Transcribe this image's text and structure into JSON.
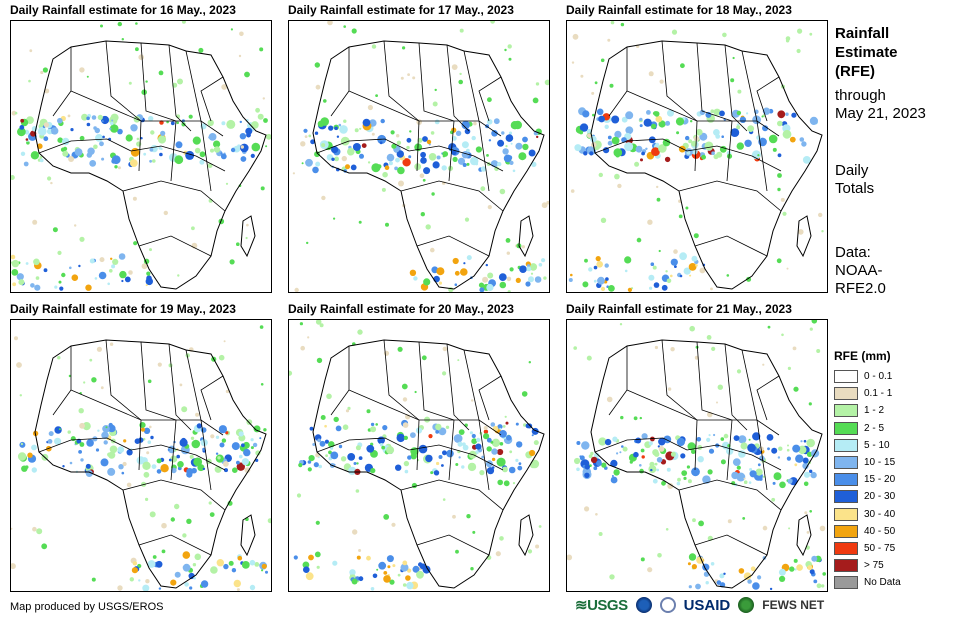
{
  "panels": [
    {
      "title": "Daily Rainfall estimate for 16 May., 2023"
    },
    {
      "title": "Daily Rainfall estimate for 17 May., 2023"
    },
    {
      "title": "Daily Rainfall estimate for 18 May., 2023"
    },
    {
      "title": "Daily Rainfall estimate for 19 May., 2023"
    },
    {
      "title": "Daily Rainfall estimate for 20 May., 2023"
    },
    {
      "title": "Daily Rainfall estimate for 21 May., 2023"
    }
  ],
  "side": {
    "title_line1": "Rainfall",
    "title_line2": "Estimate",
    "title_line3": "(RFE)",
    "through": "through",
    "date": "May 21, 2023",
    "totals1": "Daily",
    "totals2": "Totals",
    "data1": "Data:",
    "data2": "NOAA-",
    "data3": "RFE2.0"
  },
  "legend": {
    "title": "RFE (mm)",
    "items": [
      {
        "label": "0 - 0.1",
        "color": "#ffffff"
      },
      {
        "label": "0.1 - 1",
        "color": "#e9dcc0"
      },
      {
        "label": "1 - 2",
        "color": "#b4f2a6"
      },
      {
        "label": "2 - 5",
        "color": "#55dc55"
      },
      {
        "label": "5 - 10",
        "color": "#b5ecf5"
      },
      {
        "label": "10 - 15",
        "color": "#7fb5ef"
      },
      {
        "label": "15 - 20",
        "color": "#4a8ee9"
      },
      {
        "label": "20 - 30",
        "color": "#1f5fd8"
      },
      {
        "label": "30 - 40",
        "color": "#fbe38a"
      },
      {
        "label": "40 - 50",
        "color": "#f2a40f"
      },
      {
        "label": "50 - 75",
        "color": "#ef3a10"
      },
      {
        "label": "> 75",
        "color": "#a51c1c"
      },
      {
        "label": "No Data",
        "color": "#9a9a9a"
      }
    ]
  },
  "footer": {
    "credit": "Map produced by USGS/EROS"
  },
  "logos": {
    "usgs": "≋USGS",
    "usaid": "USAID",
    "fews": "FEWS NET"
  }
}
